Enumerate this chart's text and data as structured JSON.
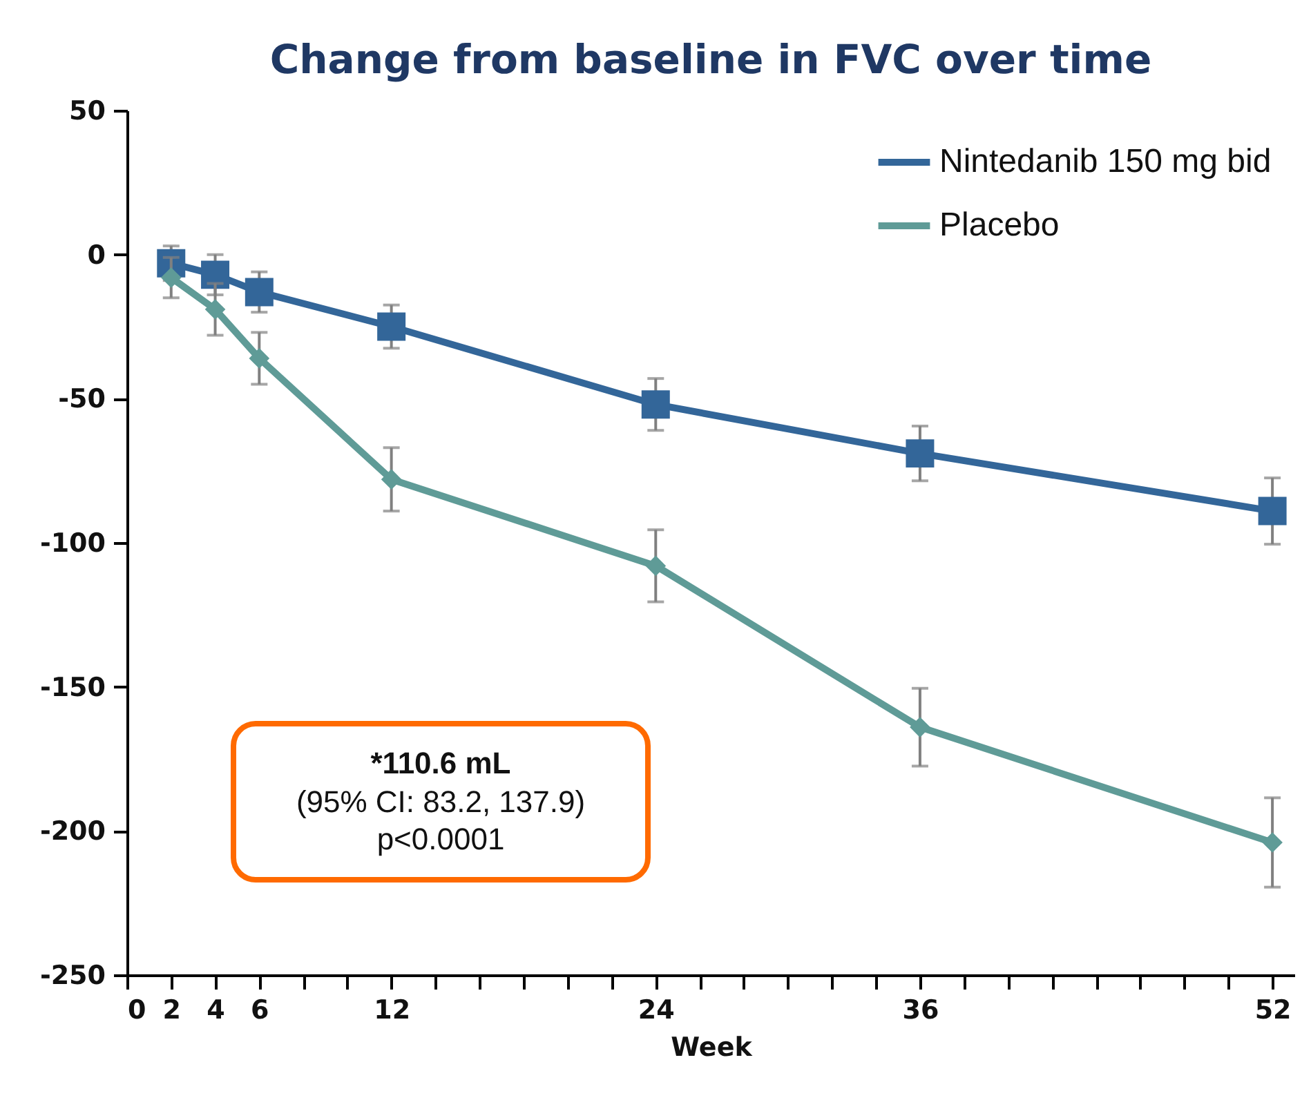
{
  "chart_data": {
    "type": "line",
    "title": "Change from baseline in FVC over time",
    "xlabel": "Week",
    "x": [
      2,
      4,
      6,
      12,
      24,
      36,
      52
    ],
    "series": [
      {
        "name": "Nintedanib 150 mg bid",
        "color": "#336699",
        "marker": "square",
        "values": [
          -3,
          -7,
          -13,
          -25,
          -52,
          -69,
          -89
        ],
        "errors": [
          6,
          7,
          7,
          7.5,
          9,
          9.5,
          11.5
        ]
      },
      {
        "name": "Placebo",
        "color": "#5f9b97",
        "marker": "diamond",
        "values": [
          -8,
          -19,
          -36,
          -78,
          -108,
          -164,
          -204
        ],
        "errors": [
          7,
          9,
          9,
          11,
          12.5,
          13.5,
          15.5
        ]
      }
    ],
    "xlim": [
      0,
      53
    ],
    "xticks": [
      0,
      2,
      4,
      6,
      {
        "value": 8,
        "label": null
      },
      {
        "value": 10,
        "label": null
      },
      12,
      {
        "value": 14,
        "label": null
      },
      {
        "value": 16,
        "label": null
      },
      {
        "value": 18,
        "label": null
      },
      {
        "value": 20,
        "label": null
      },
      {
        "value": 22,
        "label": null
      },
      24,
      {
        "value": 26,
        "label": null
      },
      {
        "value": 28,
        "label": null
      },
      {
        "value": 30,
        "label": null
      },
      {
        "value": 32,
        "label": null
      },
      {
        "value": 34,
        "label": null
      },
      36,
      {
        "value": 38,
        "label": null
      },
      {
        "value": 40,
        "label": null
      },
      {
        "value": 42,
        "label": null
      },
      {
        "value": 44,
        "label": null
      },
      {
        "value": 46,
        "label": null
      },
      {
        "value": 48,
        "label": null
      },
      {
        "value": 50,
        "label": null
      },
      52
    ],
    "ylim": [
      -250,
      50
    ],
    "yticks": [
      -250,
      -200,
      -150,
      -100,
      -50,
      0,
      50
    ],
    "grid": false,
    "legend": "top right",
    "annotations": [
      "*110.6 mL",
      "(95% CI: 83.2, 137.9)",
      "p<0.0001"
    ]
  }
}
